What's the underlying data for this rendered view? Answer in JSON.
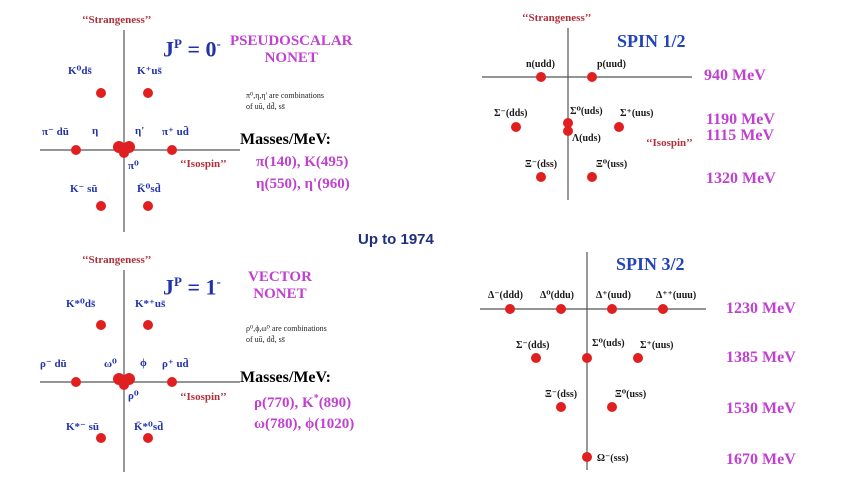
{
  "center_label": "Up to 1974",
  "pseudoscalar": {
    "strangeness": "‘‘Strangeness’’",
    "isospin": "‘‘Isospin’’",
    "jp": "J",
    "jp_sup": "P",
    "jp_val": " = 0",
    "jp_val_sup": "-",
    "title1": "PSEUDOSCALAR",
    "title2": "NONET",
    "note1": "π⁰,η,η' are combinations",
    "note2": "of uū, dd̄, ss̄",
    "masses_title": "Masses/MeV:",
    "masses1": "π(140), K(495)",
    "masses2": "η(550), η'(960)",
    "labels": {
      "k0": "K⁰ds̄",
      "kplus": "K⁺us̄",
      "piminus": "π⁻ dū",
      "eta": "η",
      "etap": "η'",
      "piplus": "π⁺ ud̄",
      "pi0": "π⁰",
      "kminus": "K⁻ sū",
      "k0bar": "K̄⁰sd̄"
    }
  },
  "vector": {
    "strangeness": "‘‘Strangeness’’",
    "isospin": "‘‘Isospin’’",
    "jp": "J",
    "jp_sup": "P",
    "jp_val": " = 1",
    "jp_val_sup": "-",
    "title1": "VECTOR",
    "title2": "NONET",
    "note1": "ρ⁰,ϕ,ω⁰ are combinations",
    "note2": "of uū, dd̄, ss̄",
    "masses_title": "Masses/MeV:",
    "masses1a": "ρ(770), K",
    "masses1sup": "*",
    "masses1b": "(890)",
    "masses2": "ω(780), ϕ(1020)",
    "labels": {
      "k0": "K*⁰ds̄",
      "kplus": "K*⁺us̄",
      "rhominus": "ρ⁻ dū",
      "omega": "ω⁰",
      "phi": "ϕ",
      "rhoplus": "ρ⁺ ud̄",
      "rho0": "ρ⁰",
      "kminus": "K*⁻ sū",
      "k0bar": "K̄*⁰sd̄"
    }
  },
  "spin_half": {
    "strangeness": "‘‘Strangeness’’",
    "isospin": "‘‘Isospin’’",
    "title": "SPIN 1/2",
    "labels": {
      "n": "n(udd)",
      "p": "p(uud)",
      "sigmaminus": "Σ⁻(dds)",
      "sigma0": "Σ⁰(uds)",
      "sigmaplus": "Σ⁺(uus)",
      "lambda": "Λ(uds)",
      "ximinus": "Ξ⁻(dss)",
      "xi0": "Ξ⁰(uss)"
    },
    "energies": [
      "940 MeV",
      "1190 MeV",
      "1115 MeV",
      "1320 MeV"
    ]
  },
  "spin_3half": {
    "title": "SPIN 3/2",
    "labels": {
      "dminus": "Δ⁻(ddd)",
      "d0": "Δ⁰(ddu)",
      "dplus": "Δ⁺(uud)",
      "dplusplus": "Δ⁺⁺(uuu)",
      "sminus": "Σ⁻(dds)",
      "s0": "Σ⁰(uds)",
      "splus": "Σ⁺(uus)",
      "xminus": "Ξ⁻(dss)",
      "x0": "Ξ⁰(uss)",
      "omega": "Ω⁻(sss)"
    },
    "energies": [
      "1230 MeV",
      "1385 MeV",
      "1530 MeV",
      "1670 MeV"
    ]
  },
  "colors": {
    "dot": "#e02020",
    "axis": "#555555",
    "magenta": "#c040d0",
    "blue": "#2244bb"
  }
}
